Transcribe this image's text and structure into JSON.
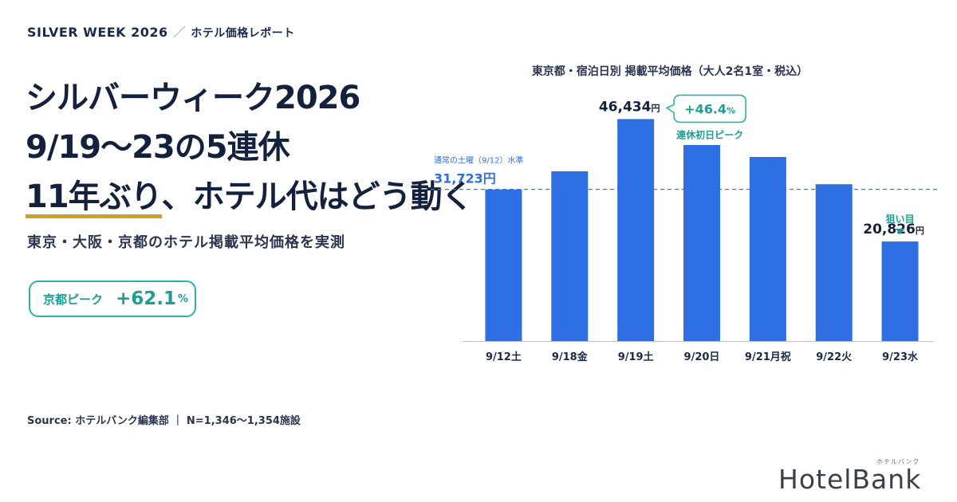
{
  "header": {
    "kicker": "SILVER WEEK 2026",
    "kicker_sep": "／",
    "kicker_sub": "ホテル価格レポート"
  },
  "headline": {
    "line1": "シルバーウィーク2026",
    "line2": "9/19～23の5連休",
    "line3_emph": "11年ぶり",
    "line3_rest": "、ホテル代はどう動く"
  },
  "subtitle": "東京・大阪・京都のホテル掲載平均価格を実測",
  "peak_badge": {
    "label": "京都ピーク",
    "value": "+62.1",
    "unit": "%"
  },
  "source": "Source: ホテルバンク編集部 ｜ N=1,346～1,354施設",
  "logo": {
    "word": "HotelBank",
    "ruby": "ホテルバンク"
  },
  "colors": {
    "bar": "#2f6fe4",
    "teal": "#1c9e92",
    "navy": "#14213d",
    "gold": "#c9a227"
  },
  "chart_data": {
    "type": "bar",
    "title": "東京都・宿泊日別 掲載平均価格（大人2名1室・税込）",
    "categories": [
      "9/12土",
      "9/18金",
      "9/19土",
      "9/20日",
      "9/21月祝",
      "9/22火",
      "9/23水"
    ],
    "values": [
      31723,
      35500,
      46434,
      41000,
      38500,
      32800,
      20826
    ],
    "ylim": [
      0,
      50000
    ],
    "reference_line": {
      "label": "通常の土曜（9/12）水準",
      "value": 31723,
      "value_label": "31,723円"
    },
    "data_labels": [
      {
        "index": 2,
        "text": "46,434",
        "unit": "円"
      },
      {
        "index": 6,
        "text": "20,826",
        "unit": "円"
      }
    ],
    "annotations": [
      {
        "index": 2,
        "callout": "+46.4",
        "callout_unit": "%",
        "note": "連休初日ピーク"
      },
      {
        "index": 6,
        "note": "狙い目"
      }
    ],
    "grid": false
  }
}
